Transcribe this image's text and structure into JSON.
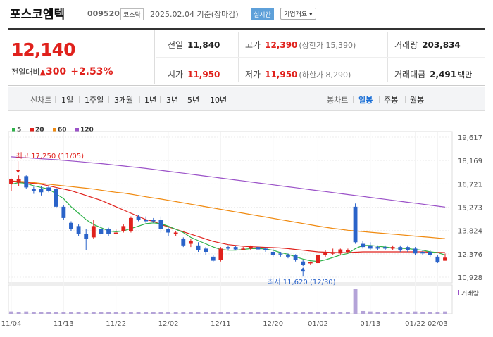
{
  "header": {
    "company": "포스코엠텍",
    "code": "009520",
    "market": "코스닥",
    "datebase": "2025.02.04 기준(장마감)",
    "realtime": "실시간",
    "corpinfo": "기업개요 ▾"
  },
  "price": {
    "current": "12,140",
    "compare_label": "전일대비",
    "change": "300",
    "rate": "+2.53%"
  },
  "stats": {
    "prev_label": "전일",
    "prev": "11,840",
    "high_label": "고가",
    "high": "12,390",
    "high_sub": "(상한가 15,390)",
    "volume_label": "거래량",
    "volume": "203,834",
    "open_label": "시가",
    "open": "11,950",
    "low_label": "저가",
    "low": "11,950",
    "low_sub": "(하한가 8,290)",
    "amount_label": "거래대금",
    "amount": "2,491",
    "amount_unit": "백만"
  },
  "tabs": {
    "line_label": "선차트",
    "line_items": [
      "1일",
      "1주일",
      "3개월",
      "1년",
      "3년",
      "5년",
      "10년"
    ],
    "candle_label": "봉차트",
    "candle_items": [
      "일봉",
      "주봉",
      "월봉"
    ],
    "active_candle": "일봉"
  },
  "colors": {
    "up": "#e0211c",
    "down": "#2a63c9",
    "ma5": "#2fb24a",
    "ma20": "#e0211c",
    "ma60": "#f08a10",
    "ma120": "#9b52c8"
  },
  "chart_data": {
    "type": "candlestick",
    "legend": [
      {
        "name": "5",
        "color": "#2fb24a"
      },
      {
        "name": "20",
        "color": "#e0211c"
      },
      {
        "name": "60",
        "color": "#f08a10"
      },
      {
        "name": "120",
        "color": "#9b52c8"
      }
    ],
    "y_ticks": [
      "19,617",
      "18,169",
      "16,721",
      "15,273",
      "13,824",
      "12,376",
      "10,928"
    ],
    "ylim": [
      10928,
      19617
    ],
    "x_labels": [
      "11/04",
      "11/13",
      "11/22",
      "12/02",
      "12/11",
      "12/20",
      "01/02",
      "01/13",
      "01/22",
      "02/03"
    ],
    "volume_label": "거래량",
    "annotations": {
      "max_text": "최고 17,250 (11/05)",
      "min_text": "최저 11,620 (12/30)"
    },
    "candles": [
      {
        "date": "11/04",
        "o": 16700,
        "c": 17000,
        "h": 17050,
        "l": 16300
      },
      {
        "date": "11/05",
        "o": 16800,
        "c": 17000,
        "h": 17250,
        "l": 16600
      },
      {
        "date": "11/06",
        "o": 17200,
        "c": 16500,
        "h": 17250,
        "l": 16400
      },
      {
        "date": "11/07",
        "o": 16400,
        "c": 16300,
        "h": 16550,
        "l": 16100
      },
      {
        "date": "11/08",
        "o": 16400,
        "c": 16200,
        "h": 16600,
        "l": 16000
      },
      {
        "date": "11/11",
        "o": 16500,
        "c": 16300,
        "h": 16600,
        "l": 16200
      },
      {
        "date": "11/12",
        "o": 16400,
        "c": 15300,
        "h": 16500,
        "l": 15200
      },
      {
        "date": "11/13",
        "o": 15300,
        "c": 14600,
        "h": 15400,
        "l": 14500
      },
      {
        "date": "11/14",
        "o": 14300,
        "c": 13900,
        "h": 14400,
        "l": 13800
      },
      {
        "date": "11/15",
        "o": 14100,
        "c": 13600,
        "h": 14200,
        "l": 13500
      },
      {
        "date": "11/18",
        "o": 13600,
        "c": 13300,
        "h": 13900,
        "l": 12600
      },
      {
        "date": "11/19",
        "o": 13400,
        "c": 14100,
        "h": 14500,
        "l": 13300
      },
      {
        "date": "11/20",
        "o": 13900,
        "c": 13600,
        "h": 14200,
        "l": 13500
      },
      {
        "date": "11/21",
        "o": 13900,
        "c": 13600,
        "h": 14000,
        "l": 13500
      },
      {
        "date": "11/22",
        "o": 13700,
        "c": 13700,
        "h": 13900,
        "l": 13600
      },
      {
        "date": "11/25",
        "o": 13800,
        "c": 14100,
        "h": 14200,
        "l": 13700
      },
      {
        "date": "11/26",
        "o": 13800,
        "c": 14600,
        "h": 14700,
        "l": 13700
      },
      {
        "date": "11/27",
        "o": 14700,
        "c": 14500,
        "h": 14800,
        "l": 14400
      },
      {
        "date": "11/28",
        "o": 14500,
        "c": 14400,
        "h": 14700,
        "l": 14300
      },
      {
        "date": "11/29",
        "o": 14500,
        "c": 14400,
        "h": 14600,
        "l": 14300
      },
      {
        "date": "12/02",
        "o": 14500,
        "c": 13900,
        "h": 14700,
        "l": 13700
      },
      {
        "date": "12/03",
        "o": 13900,
        "c": 13700,
        "h": 14000,
        "l": 13500
      },
      {
        "date": "12/04",
        "o": 13700,
        "c": 13700,
        "h": 13800,
        "l": 13500
      },
      {
        "date": "12/05",
        "o": 13300,
        "c": 12900,
        "h": 13400,
        "l": 12800
      },
      {
        "date": "12/06",
        "o": 13000,
        "c": 13200,
        "h": 13300,
        "l": 12800
      },
      {
        "date": "12/09",
        "o": 12900,
        "c": 12600,
        "h": 13100,
        "l": 12500
      },
      {
        "date": "12/10",
        "o": 12700,
        "c": 12500,
        "h": 12800,
        "l": 12300
      },
      {
        "date": "12/11",
        "o": 12200,
        "c": 11950,
        "h": 12300,
        "l": 11900
      },
      {
        "date": "12/12",
        "o": 12000,
        "c": 12700,
        "h": 12800,
        "l": 11900
      },
      {
        "date": "12/13",
        "o": 12800,
        "c": 12700,
        "h": 12900,
        "l": 12600
      },
      {
        "date": "12/16",
        "o": 12800,
        "c": 12650,
        "h": 12900,
        "l": 12600
      },
      {
        "date": "12/17",
        "o": 12700,
        "c": 12700,
        "h": 12800,
        "l": 12600
      },
      {
        "date": "12/18",
        "o": 12700,
        "c": 12850,
        "h": 12900,
        "l": 12600
      },
      {
        "date": "12/19",
        "o": 12800,
        "c": 12650,
        "h": 12900,
        "l": 12600
      },
      {
        "date": "12/20",
        "o": 12700,
        "c": 12600,
        "h": 12800,
        "l": 12500
      },
      {
        "date": "12/23",
        "o": 12500,
        "c": 12300,
        "h": 12700,
        "l": 12200
      },
      {
        "date": "12/24",
        "o": 12400,
        "c": 12350,
        "h": 12500,
        "l": 12200
      },
      {
        "date": "12/26",
        "o": 12300,
        "c": 12200,
        "h": 12400,
        "l": 12100
      },
      {
        "date": "12/27",
        "o": 12300,
        "c": 12000,
        "h": 12350,
        "l": 11900
      },
      {
        "date": "12/30",
        "o": 11900,
        "c": 11700,
        "h": 12000,
        "l": 11620
      },
      {
        "date": "01/02",
        "o": 11800,
        "c": 11850,
        "h": 11900,
        "l": 11700
      },
      {
        "date": "01/03",
        "o": 11800,
        "c": 12300,
        "h": 12400,
        "l": 11750
      },
      {
        "date": "01/06",
        "o": 12300,
        "c": 12500,
        "h": 12600,
        "l": 12200
      },
      {
        "date": "01/07",
        "o": 12400,
        "c": 12450,
        "h": 12700,
        "l": 12300
      },
      {
        "date": "01/08",
        "o": 12400,
        "c": 12650,
        "h": 12700,
        "l": 12300
      },
      {
        "date": "01/09",
        "o": 12500,
        "c": 12600,
        "h": 12700,
        "l": 12400
      },
      {
        "date": "01/10",
        "o": 15300,
        "c": 13100,
        "h": 15500,
        "l": 13000
      },
      {
        "date": "01/13",
        "o": 13000,
        "c": 12800,
        "h": 13200,
        "l": 12700
      },
      {
        "date": "01/14",
        "o": 12900,
        "c": 12700,
        "h": 13100,
        "l": 12600
      },
      {
        "date": "01/15",
        "o": 12800,
        "c": 12700,
        "h": 12900,
        "l": 12600
      },
      {
        "date": "01/16",
        "o": 12800,
        "c": 12700,
        "h": 12900,
        "l": 12600
      },
      {
        "date": "01/17",
        "o": 12700,
        "c": 12800,
        "h": 12900,
        "l": 12600
      },
      {
        "date": "01/20",
        "o": 12800,
        "c": 12600,
        "h": 12900,
        "l": 12500
      },
      {
        "date": "01/21",
        "o": 12800,
        "c": 12600,
        "h": 12900,
        "l": 12500
      },
      {
        "date": "01/22",
        "o": 12700,
        "c": 12400,
        "h": 12800,
        "l": 12300
      },
      {
        "date": "01/23",
        "o": 12500,
        "c": 12400,
        "h": 12600,
        "l": 12300
      },
      {
        "date": "01/24",
        "o": 12500,
        "c": 12300,
        "h": 12600,
        "l": 12200
      },
      {
        "date": "02/03",
        "o": 12200,
        "c": 11840,
        "h": 12300,
        "l": 11800
      },
      {
        "date": "02/04",
        "o": 11950,
        "c": 12140,
        "h": 12390,
        "l": 11950
      }
    ],
    "volumes": [
      5,
      4,
      5,
      4,
      4,
      3,
      4,
      4,
      3,
      3,
      4,
      4,
      3,
      4,
      3,
      3,
      4,
      3,
      3,
      3,
      4,
      3,
      3,
      3,
      3,
      3,
      3,
      4,
      4,
      3,
      3,
      3,
      3,
      3,
      3,
      3,
      3,
      3,
      3,
      4,
      3,
      3,
      3,
      3,
      3,
      3,
      52,
      6,
      5,
      4,
      4,
      3,
      3,
      4,
      5,
      3,
      4,
      4,
      5
    ],
    "ma5": [
      16700,
      16800,
      16750,
      16600,
      16500,
      16400,
      16100,
      15800,
      15300,
      14900,
      14500,
      14200,
      14000,
      13800,
      13750,
      13800,
      13950,
      14100,
      14250,
      14300,
      14250,
      14100,
      13900,
      13700,
      13400,
      13200,
      13000,
      12800,
      12650,
      12600,
      12600,
      12650,
      12700,
      12700,
      12680,
      12600,
      12450,
      12350,
      12200,
      12050,
      11950,
      11900,
      12000,
      12150,
      12300,
      12400,
      12700,
      12900,
      12900,
      12850,
      12800,
      12750,
      12720,
      12700,
      12650,
      12600,
      12500,
      12450,
      12300
    ],
    "ma20": [
      16900,
      16850,
      16800,
      16750,
      16700,
      16600,
      16500,
      16400,
      16300,
      16150,
      16000,
      15850,
      15700,
      15500,
      15300,
      15100,
      14900,
      14700,
      14500,
      14400,
      14200,
      14050,
      13900,
      13750,
      13600,
      13450,
      13300,
      13150,
      13050,
      12950,
      12900,
      12850,
      12820,
      12800,
      12780,
      12760,
      12740,
      12700,
      12650,
      12600,
      12550,
      12500,
      12480,
      12460,
      12450,
      12450,
      12480,
      12500,
      12500,
      12500,
      12500,
      12500,
      12500,
      12500,
      12500,
      12500,
      12480,
      12470,
      12450
    ],
    "ma60": [
      16900,
      16880,
      16850,
      16800,
      16750,
      16700,
      16650,
      16600,
      16550,
      16500,
      16450,
      16400,
      16330,
      16260,
      16200,
      16150,
      16080,
      16000,
      15920,
      15850,
      15780,
      15700,
      15620,
      15540,
      15460,
      15380,
      15300,
      15220,
      15140,
      15060,
      14980,
      14900,
      14820,
      14740,
      14660,
      14580,
      14500,
      14420,
      14340,
      14260,
      14180,
      14100,
      14030,
      13960,
      13900,
      13840,
      13800,
      13760,
      13720,
      13680,
      13640,
      13600,
      13560,
      13520,
      13480,
      13440,
      13400,
      13360,
      13320
    ],
    "ma120": [
      18400,
      18370,
      18340,
      18310,
      18280,
      18250,
      18220,
      18180,
      18140,
      18100,
      18060,
      18020,
      17980,
      17930,
      17880,
      17830,
      17780,
      17730,
      17680,
      17620,
      17560,
      17500,
      17440,
      17380,
      17320,
      17260,
      17200,
      17140,
      17080,
      17020,
      16960,
      16900,
      16840,
      16780,
      16720,
      16660,
      16600,
      16540,
      16480,
      16420,
      16360,
      16300,
      16240,
      16180,
      16120,
      16060,
      16000,
      15940,
      15880,
      15820,
      15760,
      15700,
      15640,
      15580,
      15520,
      15460,
      15400,
      15340,
      15280
    ]
  }
}
